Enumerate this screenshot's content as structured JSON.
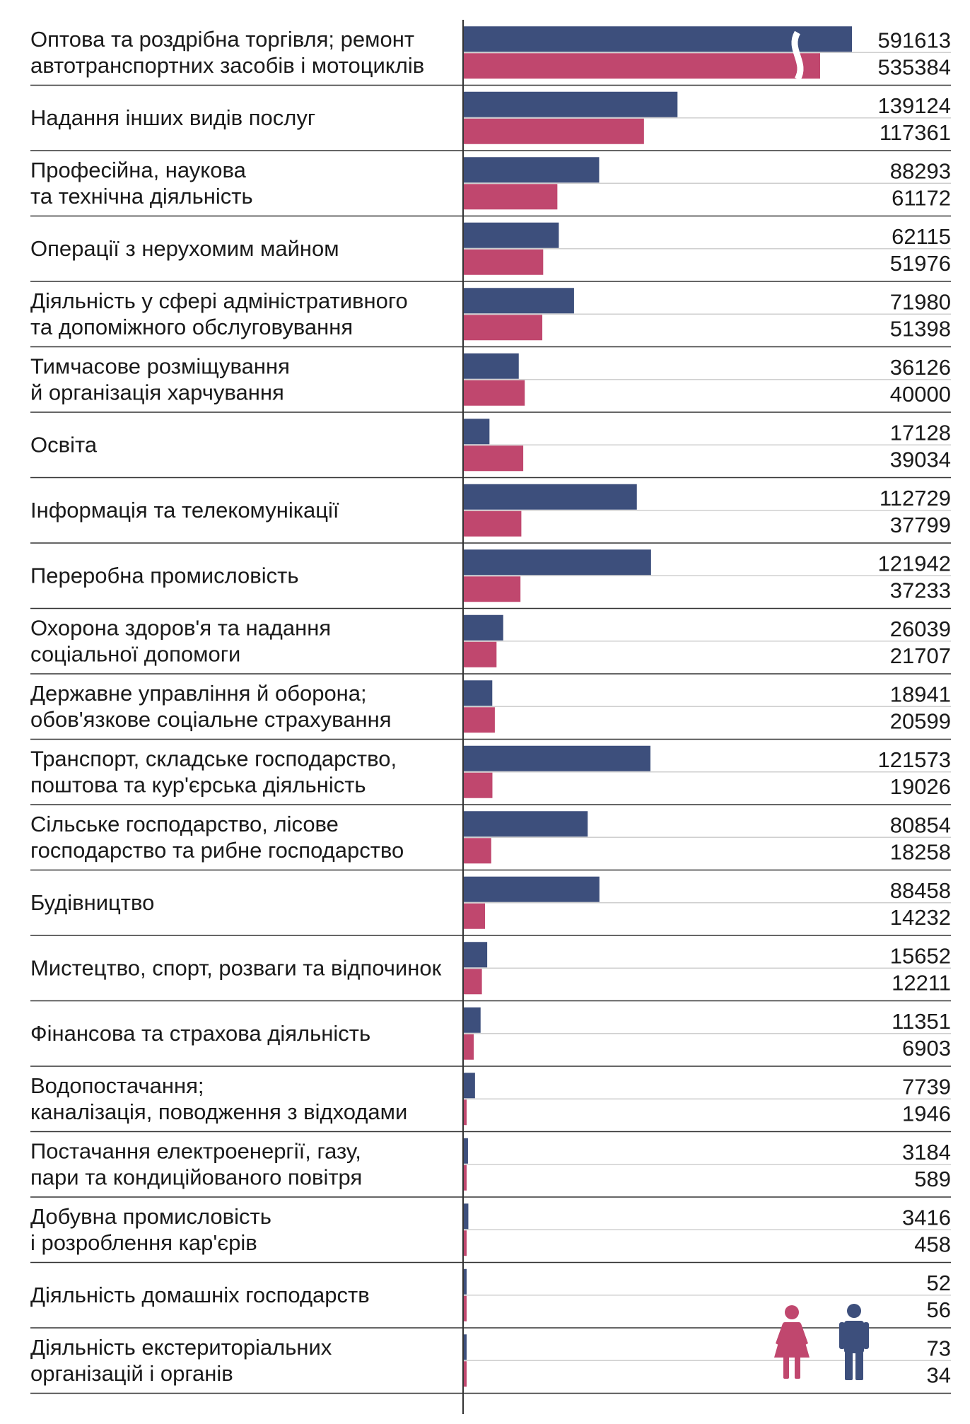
{
  "chart_data": {
    "type": "bar",
    "orientation": "horizontal",
    "categories": [
      [
        "Оптова та роздрібна торгівля; ремонт",
        "автотранспортних засобів і мотоциклів"
      ],
      [
        "Надання інших видів послуг"
      ],
      [
        "Професійна, наукова",
        "та технічна діяльність"
      ],
      [
        "Операції з нерухомим майном"
      ],
      [
        "Діяльність у сфері адміністративного",
        "та допоміжного обслуговування"
      ],
      [
        "Тимчасове розміщування",
        "й організація харчування"
      ],
      [
        "Освіта"
      ],
      [
        "Інформація та телекомунікації"
      ],
      [
        "Переробна промисловість"
      ],
      [
        "Охорона здоров'я та надання",
        "соціальної допомоги"
      ],
      [
        "Державне управління й оборона;",
        "обов'язкове соціальне страхування"
      ],
      [
        "Транспорт, складське господарство,",
        "поштова та кур'єрська діяльність"
      ],
      [
        "Сільське господарство, лісове",
        "господарство та рибне господарство"
      ],
      [
        "Будівництво"
      ],
      [
        "Мистецтво, спорт, розваги та відпочинок"
      ],
      [
        "Фінансова та страхова діяльність"
      ],
      [
        "Водопостачання;",
        "каналізація, поводження з відходами"
      ],
      [
        "Постачання електроенергії, газу,",
        "пари та кондиційованого повітря"
      ],
      [
        "Добувна промисловість",
        "і розроблення кар'єрів"
      ],
      [
        "Діяльність домашніх господарств"
      ],
      [
        "Діяльність екстериторіальних",
        "організацій і органів"
      ]
    ],
    "series": [
      {
        "color": "#3d4f7c",
        "values": [
          591613,
          139124,
          88293,
          62115,
          71980,
          36126,
          17128,
          112729,
          121942,
          26039,
          18941,
          121573,
          80854,
          88458,
          15652,
          11351,
          7739,
          3184,
          3416,
          52,
          73
        ]
      },
      {
        "color": "#c0476e",
        "values": [
          535384,
          117361,
          61172,
          51976,
          51398,
          40000,
          39034,
          37799,
          37233,
          21707,
          20599,
          19026,
          18258,
          14232,
          12211,
          6903,
          1946,
          589,
          458,
          56,
          34
        ]
      }
    ],
    "axis_break": "first category bars truncated",
    "legend": "bottom-right",
    "legend_icons": [
      "woman-icon",
      "man-icon"
    ],
    "grid": false
  }
}
